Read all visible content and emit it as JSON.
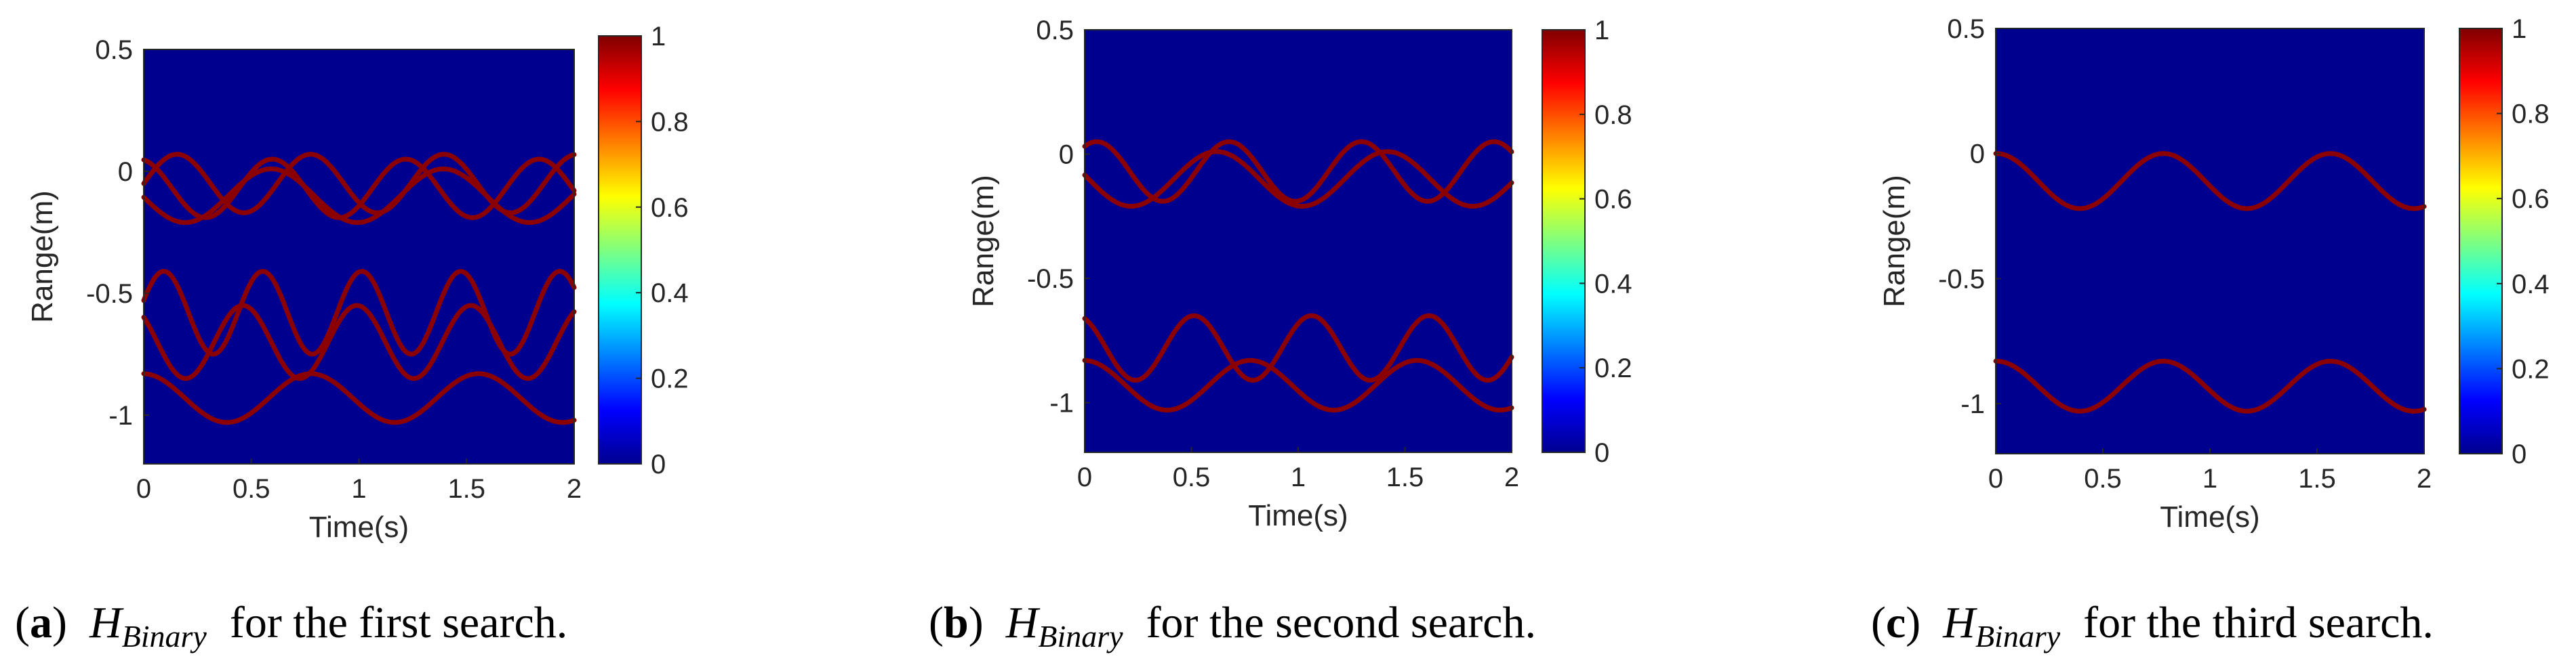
{
  "chart_data": [
    {
      "type": "heatmap",
      "panel": "a",
      "caption": {
        "label": "a",
        "symbol": "H",
        "subscript": "Binary",
        "text": "for the first search."
      },
      "xlabel": "Time(s)",
      "ylabel": "Range(m)",
      "xlim": [
        0,
        2
      ],
      "ylim": [
        -1.2,
        0.5
      ],
      "xticks": [
        "0",
        "0.5",
        "1",
        "1.5",
        "2"
      ],
      "yticks": [
        "0.5",
        "0",
        "-0.5",
        "-1"
      ],
      "colorbar": {
        "range": [
          0,
          1
        ],
        "ticks": [
          "1",
          "0.8",
          "0.6",
          "0.4",
          "0.2",
          "0"
        ]
      },
      "background_value": 0,
      "trace_value": 1,
      "traces": [
        {
          "name": "trace-1",
          "offset": -0.05,
          "amplitude": 0.12,
          "period_s": 0.62,
          "phase": 0.0
        },
        {
          "name": "trace-2",
          "offset": -0.07,
          "amplitude": 0.12,
          "period_s": 0.62,
          "phase": 1.8
        },
        {
          "name": "trace-3",
          "offset": -0.1,
          "amplitude": 0.11,
          "period_s": 0.8,
          "phase": 3.2
        },
        {
          "name": "trace-4",
          "offset": -0.58,
          "amplitude": 0.17,
          "period_s": 0.46,
          "phase": 0.3
        },
        {
          "name": "trace-5",
          "offset": -0.7,
          "amplitude": 0.15,
          "period_s": 0.53,
          "phase": 2.4
        },
        {
          "name": "trace-6",
          "offset": -0.93,
          "amplitude": 0.1,
          "period_s": 0.78,
          "phase": 1.6
        }
      ]
    },
    {
      "type": "heatmap",
      "panel": "b",
      "caption": {
        "label": "b",
        "symbol": "H",
        "subscript": "Binary",
        "text": "for the second search."
      },
      "xlabel": "Time(s)",
      "ylabel": "Range(m)",
      "xlim": [
        0,
        2
      ],
      "ylim": [
        -1.2,
        0.5
      ],
      "xticks": [
        "0",
        "0.5",
        "1",
        "1.5",
        "2"
      ],
      "yticks": [
        "0.5",
        "0",
        "-0.5",
        "-1"
      ],
      "colorbar": {
        "range": [
          0,
          1
        ],
        "ticks": [
          "1",
          "0.8",
          "0.6",
          "0.4",
          "0.2",
          "0"
        ]
      },
      "background_value": 0,
      "trace_value": 1,
      "traces": [
        {
          "name": "trace-1",
          "offset": -0.07,
          "amplitude": 0.12,
          "period_s": 0.62,
          "phase": 1.0
        },
        {
          "name": "trace-2",
          "offset": -0.1,
          "amplitude": 0.11,
          "period_s": 0.8,
          "phase": 3.0
        },
        {
          "name": "trace-3",
          "offset": -0.78,
          "amplitude": 0.13,
          "period_s": 0.55,
          "phase": 2.0
        },
        {
          "name": "trace-4",
          "offset": -0.93,
          "amplitude": 0.1,
          "period_s": 0.78,
          "phase": 1.6
        }
      ]
    },
    {
      "type": "heatmap",
      "panel": "c",
      "caption": {
        "label": "c",
        "symbol": "H",
        "subscript": "Binary",
        "text": "for the third search."
      },
      "xlabel": "Time(s)",
      "ylabel": "Range(m)",
      "xlim": [
        0,
        2
      ],
      "ylim": [
        -1.2,
        0.5
      ],
      "xticks": [
        "0",
        "0.5",
        "1",
        "1.5",
        "2"
      ],
      "yticks": [
        "0.5",
        "0",
        "-0.5",
        "-1"
      ],
      "colorbar": {
        "range": [
          0,
          1
        ],
        "ticks": [
          "1",
          "0.8",
          "0.6",
          "0.4",
          "0.2",
          "0"
        ]
      },
      "background_value": 0,
      "trace_value": 1,
      "traces": [
        {
          "name": "trace-1",
          "offset": -0.11,
          "amplitude": 0.11,
          "period_s": 0.78,
          "phase": 1.55
        },
        {
          "name": "trace-2",
          "offset": -0.93,
          "amplitude": 0.1,
          "period_s": 0.78,
          "phase": 1.55
        }
      ]
    }
  ]
}
